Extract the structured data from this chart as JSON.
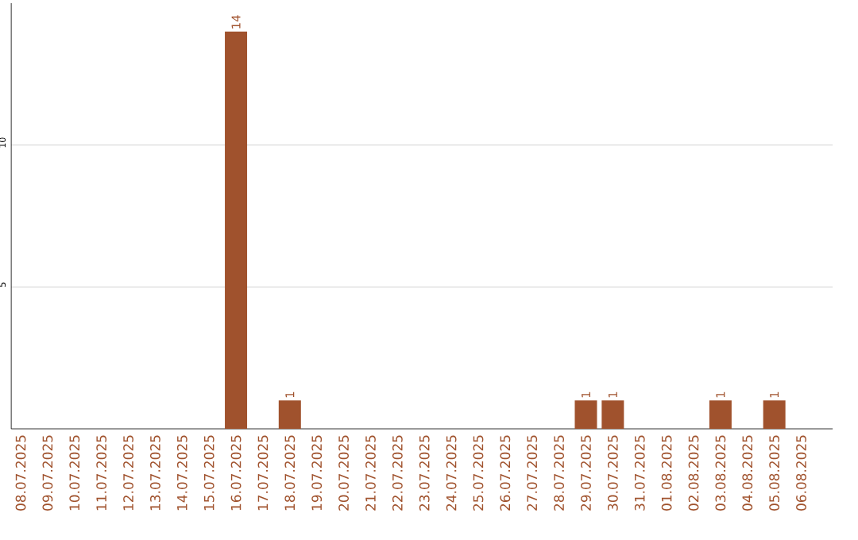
{
  "chart_data": {
    "type": "bar",
    "categories": [
      "08.07.2025",
      "09.07.2025",
      "10.07.2025",
      "11.07.2025",
      "12.07.2025",
      "13.07.2025",
      "14.07.2025",
      "15.07.2025",
      "16.07.2025",
      "17.07.2025",
      "18.07.2025",
      "19.07.2025",
      "20.07.2025",
      "21.07.2025",
      "22.07.2025",
      "23.07.2025",
      "24.07.2025",
      "25.07.2025",
      "26.07.2025",
      "27.07.2025",
      "28.07.2025",
      "29.07.2025",
      "30.07.2025",
      "31.07.2025",
      "01.08.2025",
      "02.08.2025",
      "03.08.2025",
      "04.08.2025",
      "05.08.2025",
      "06.08.2025"
    ],
    "values": [
      0,
      0,
      0,
      0,
      0,
      0,
      0,
      0,
      14,
      0,
      1,
      0,
      0,
      0,
      0,
      0,
      0,
      0,
      0,
      0,
      0,
      1,
      1,
      0,
      0,
      0,
      1,
      0,
      1,
      0
    ],
    "value_labels": [
      null,
      null,
      null,
      null,
      null,
      null,
      null,
      null,
      "14",
      null,
      "1",
      null,
      null,
      null,
      null,
      null,
      null,
      null,
      null,
      null,
      null,
      "1",
      "1",
      null,
      null,
      null,
      "1",
      null,
      "1",
      null
    ],
    "color": "#a0522d",
    "ylim": [
      0,
      15
    ],
    "yticks": [
      5,
      10
    ],
    "grid": "y"
  }
}
